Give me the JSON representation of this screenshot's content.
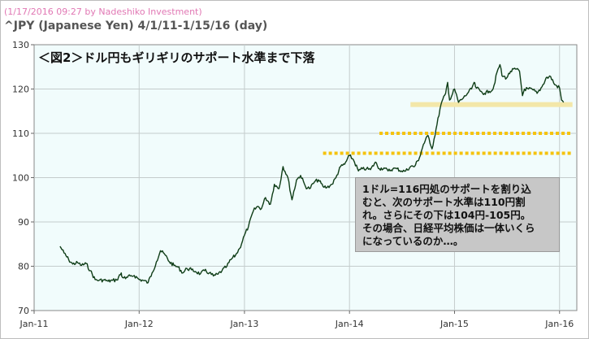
{
  "header": {
    "meta": "(1/17/2016 09:27 by Nadeshiko Investment)",
    "title": "^JPY (Japanese Yen)  4/1/11-1/15/16 (day)"
  },
  "chart_data": {
    "type": "line",
    "title": "＜図2＞ドル円もギリギリのサポート水準まで下落",
    "xlabel": "",
    "ylabel": "",
    "ylim": [
      70,
      130
    ],
    "xlim": [
      "2011-01-01",
      "2016-03-01"
    ],
    "grid": true,
    "y_ticks": [
      70,
      80,
      90,
      100,
      110,
      120,
      130
    ],
    "x_ticks": [
      {
        "label": "Jan-11",
        "date": "2011-01-01"
      },
      {
        "label": "Jan-12",
        "date": "2012-01-01"
      },
      {
        "label": "Jan-13",
        "date": "2013-01-01"
      },
      {
        "label": "Jan-14",
        "date": "2014-01-01"
      },
      {
        "label": "Jan-15",
        "date": "2015-01-01"
      },
      {
        "label": "Jan-16",
        "date": "2016-01-01"
      }
    ],
    "series": [
      {
        "color": "#0f3d17",
        "points": [
          [
            "2011-04-01",
            84.5
          ],
          [
            "2011-04-15",
            83.0
          ],
          [
            "2011-05-01",
            81.5
          ],
          [
            "2011-05-15",
            80.5
          ],
          [
            "2011-06-01",
            80.8
          ],
          [
            "2011-06-15",
            80.2
          ],
          [
            "2011-07-01",
            80.6
          ],
          [
            "2011-07-15",
            79.0
          ],
          [
            "2011-08-01",
            77.0
          ],
          [
            "2011-08-15",
            76.8
          ],
          [
            "2011-09-01",
            76.9
          ],
          [
            "2011-09-15",
            76.6
          ],
          [
            "2011-10-01",
            76.8
          ],
          [
            "2011-10-15",
            76.9
          ],
          [
            "2011-10-31",
            78.5
          ],
          [
            "2011-11-01",
            77.8
          ],
          [
            "2011-11-15",
            77.2
          ],
          [
            "2011-12-01",
            77.8
          ],
          [
            "2011-12-15",
            77.9
          ],
          [
            "2012-01-01",
            77.0
          ],
          [
            "2012-01-15",
            76.8
          ],
          [
            "2012-02-01",
            76.3
          ],
          [
            "2012-02-15",
            78.5
          ],
          [
            "2012-03-01",
            81.0
          ],
          [
            "2012-03-15",
            83.5
          ],
          [
            "2012-04-01",
            82.5
          ],
          [
            "2012-04-15",
            81.0
          ],
          [
            "2012-05-01",
            80.2
          ],
          [
            "2012-05-15",
            79.8
          ],
          [
            "2012-06-01",
            78.5
          ],
          [
            "2012-06-15",
            79.5
          ],
          [
            "2012-07-01",
            79.2
          ],
          [
            "2012-07-15",
            78.8
          ],
          [
            "2012-08-01",
            78.3
          ],
          [
            "2012-08-15",
            79.0
          ],
          [
            "2012-09-01",
            78.5
          ],
          [
            "2012-09-15",
            77.8
          ],
          [
            "2012-10-01",
            78.2
          ],
          [
            "2012-10-15",
            79.0
          ],
          [
            "2012-11-01",
            80.0
          ],
          [
            "2012-11-15",
            81.5
          ],
          [
            "2012-12-01",
            82.5
          ],
          [
            "2012-12-15",
            84.0
          ],
          [
            "2013-01-01",
            87.0
          ],
          [
            "2013-01-15",
            89.0
          ],
          [
            "2013-02-01",
            92.5
          ],
          [
            "2013-02-15",
            93.5
          ],
          [
            "2013-03-01",
            93.0
          ],
          [
            "2013-03-15",
            95.5
          ],
          [
            "2013-04-01",
            94.0
          ],
          [
            "2013-04-15",
            98.5
          ],
          [
            "2013-05-01",
            97.5
          ],
          [
            "2013-05-15",
            102.5
          ],
          [
            "2013-06-01",
            100.0
          ],
          [
            "2013-06-15",
            95.0
          ],
          [
            "2013-07-01",
            99.5
          ],
          [
            "2013-07-15",
            100.5
          ],
          [
            "2013-08-01",
            98.0
          ],
          [
            "2013-08-15",
            97.5
          ],
          [
            "2013-09-01",
            99.0
          ],
          [
            "2013-09-15",
            99.5
          ],
          [
            "2013-10-01",
            98.0
          ],
          [
            "2013-10-15",
            97.8
          ],
          [
            "2013-11-01",
            98.5
          ],
          [
            "2013-11-15",
            100.0
          ],
          [
            "2013-12-01",
            102.5
          ],
          [
            "2013-12-15",
            103.0
          ],
          [
            "2014-01-01",
            105.0
          ],
          [
            "2014-01-15",
            104.0
          ],
          [
            "2014-02-01",
            101.5
          ],
          [
            "2014-02-15",
            102.0
          ],
          [
            "2014-03-01",
            102.0
          ],
          [
            "2014-03-15",
            101.8
          ],
          [
            "2014-04-01",
            103.5
          ],
          [
            "2014-04-15",
            102.0
          ],
          [
            "2014-05-01",
            102.2
          ],
          [
            "2014-05-15",
            101.5
          ],
          [
            "2014-06-01",
            102.0
          ],
          [
            "2014-06-15",
            102.0
          ],
          [
            "2014-07-01",
            101.5
          ],
          [
            "2014-07-15",
            101.5
          ],
          [
            "2014-08-01",
            102.5
          ],
          [
            "2014-08-15",
            102.5
          ],
          [
            "2014-09-01",
            104.5
          ],
          [
            "2014-09-15",
            107.5
          ],
          [
            "2014-10-01",
            109.5
          ],
          [
            "2014-10-15",
            106.5
          ],
          [
            "2014-11-01",
            112.0
          ],
          [
            "2014-11-15",
            116.5
          ],
          [
            "2014-12-01",
            119.0
          ],
          [
            "2014-12-08",
            121.5
          ],
          [
            "2014-12-15",
            117.5
          ],
          [
            "2015-01-01",
            120.0
          ],
          [
            "2015-01-15",
            117.0
          ],
          [
            "2015-02-01",
            118.0
          ],
          [
            "2015-02-15",
            119.0
          ],
          [
            "2015-03-01",
            120.0
          ],
          [
            "2015-03-10",
            121.5
          ],
          [
            "2015-03-15",
            120.5
          ],
          [
            "2015-04-01",
            119.5
          ],
          [
            "2015-04-15",
            119.0
          ],
          [
            "2015-05-01",
            119.5
          ],
          [
            "2015-05-15",
            120.0
          ],
          [
            "2015-06-01",
            124.5
          ],
          [
            "2015-06-08",
            125.5
          ],
          [
            "2015-06-15",
            123.0
          ],
          [
            "2015-07-01",
            122.5
          ],
          [
            "2015-07-15",
            124.0
          ],
          [
            "2015-08-01",
            124.5
          ],
          [
            "2015-08-15",
            124.0
          ],
          [
            "2015-08-25",
            118.5
          ],
          [
            "2015-09-01",
            120.0
          ],
          [
            "2015-09-15",
            120.0
          ],
          [
            "2015-10-01",
            119.8
          ],
          [
            "2015-10-15",
            119.0
          ],
          [
            "2015-11-01",
            120.5
          ],
          [
            "2015-11-15",
            122.5
          ],
          [
            "2015-12-01",
            122.8
          ],
          [
            "2015-12-15",
            121.0
          ],
          [
            "2016-01-01",
            120.3
          ],
          [
            "2016-01-08",
            117.5
          ],
          [
            "2016-01-15",
            117.0
          ]
        ]
      }
    ],
    "support_levels": [
      {
        "value": 116.5,
        "from": "2014-08-01",
        "to": "2016-02-15",
        "style": "solid-band"
      },
      {
        "value": 110.0,
        "from": "2014-04-15",
        "to": "2016-02-15",
        "style": "dotted"
      },
      {
        "value": 105.5,
        "from": "2013-10-01",
        "to": "2016-02-15",
        "style": "dotted"
      }
    ]
  },
  "annotation": {
    "lines": [
      "1ドル=116円処のサポートを割り込",
      "むと、次のサポート水準は110円割",
      "れ。さらにその下は104円-105円。",
      "その場合、日経平均株価は一体いくら",
      "になっているのか…。"
    ]
  },
  "colors": {
    "plot_bg": "#f1fcfc",
    "line": "#0f3d17",
    "band": "#f3e7a9",
    "dotted": "#f5c30e",
    "note_bg": "#c7c7c7"
  }
}
